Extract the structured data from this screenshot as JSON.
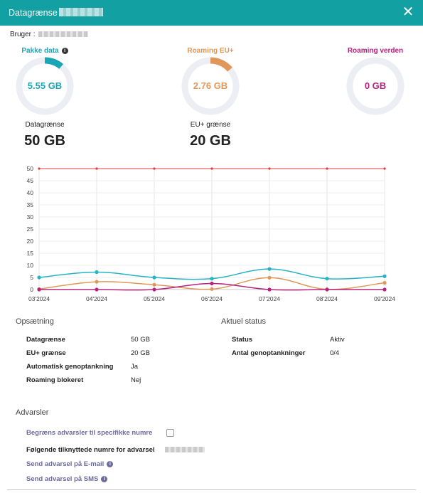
{
  "dialog": {
    "title": "Datagrænse",
    "close_icon": "close-icon"
  },
  "user": {
    "label": "Bruger :"
  },
  "gauges": [
    {
      "label": "Pakke data",
      "value": "5.55 GB",
      "color": "#1aa6b7",
      "fraction": 0.111,
      "has_info": true,
      "limit_label": "Datagrænse",
      "limit_value": "50 GB"
    },
    {
      "label": "Roaming EU+",
      "value": "2.76 GB",
      "color": "#e0985a",
      "fraction": 0.138,
      "has_info": false,
      "limit_label": "EU+ grænse",
      "limit_value": "20 GB"
    },
    {
      "label": "Roaming verden",
      "value": "0 GB",
      "color": "#b5237f",
      "fraction": 0,
      "has_info": false
    }
  ],
  "chart_data": {
    "type": "line",
    "categories": [
      "03'2024",
      "04'2024",
      "05'2024",
      "06'2024",
      "07'2024",
      "08'2024",
      "09'2024"
    ],
    "y_ticks": [
      0,
      5,
      10,
      15,
      20,
      25,
      30,
      35,
      40,
      45,
      50
    ],
    "ylim": [
      0,
      50
    ],
    "grid": true,
    "series": [
      {
        "color": "#e03c3c",
        "values": [
          50,
          50,
          50,
          50,
          50,
          50,
          50
        ]
      },
      {
        "color": "#26b3c4",
        "values": [
          5.0,
          7.2,
          5.0,
          4.5,
          8.5,
          4.5,
          5.5
        ]
      },
      {
        "color": "#e0985a",
        "values": [
          0.2,
          3.2,
          2.0,
          0.2,
          4.9,
          0.1,
          2.8
        ]
      },
      {
        "color": "#b5237f",
        "values": [
          0,
          0,
          0,
          2.5,
          0,
          0,
          0
        ]
      }
    ]
  },
  "setup": {
    "title": "Opsætning",
    "rows": [
      {
        "label": "Datagrænse",
        "value": "50 GB"
      },
      {
        "label": "EU+ grænse",
        "value": "20 GB"
      },
      {
        "label": "Automatisk genoptankning",
        "value": "Ja"
      },
      {
        "label": "Roaming blokeret",
        "value": "Nej"
      }
    ]
  },
  "status": {
    "title": "Aktuel status",
    "rows": [
      {
        "label": "Status",
        "value": "Aktiv"
      },
      {
        "label": "Antal genoptankninger",
        "value": "0/4"
      }
    ]
  },
  "warnings": {
    "title": "Advarsler",
    "limit_specific": "Begræns advarsler til specifikke numre",
    "linked_numbers": "Følgende tilknyttede numre for advarsel",
    "send_email": "Send advarsel på E-mail",
    "send_sms": "Send advarsel på SMS"
  }
}
